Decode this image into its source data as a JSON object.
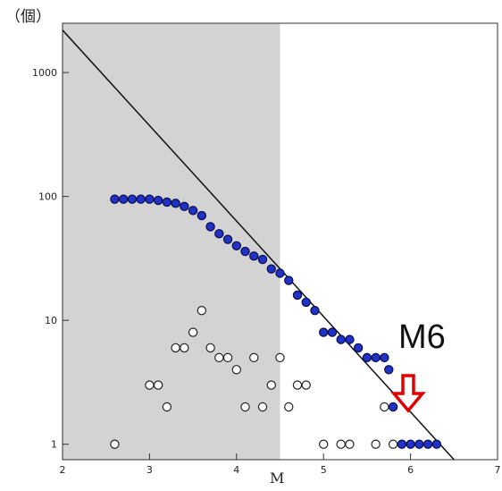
{
  "chart_data": {
    "type": "scatter",
    "ylabel": "（個）",
    "xlabel": "M",
    "xlim": [
      2,
      7
    ],
    "ylim": [
      0.75,
      2500
    ],
    "y_scale": "log",
    "x_ticks": [
      "2",
      "3",
      "4",
      "5",
      "6",
      "7"
    ],
    "y_ticks": [
      {
        "value": 1,
        "label": "1"
      },
      {
        "value": 10,
        "label": "10"
      },
      {
        "value": 100,
        "label": "100"
      },
      {
        "value": 1000,
        "label": "1000"
      }
    ],
    "shaded_region": {
      "x_from": 2,
      "x_to": 4.5,
      "color": "#d3d3d3"
    },
    "reference_line": {
      "x": [
        2,
        6.5
      ],
      "y": [
        2200,
        0.75
      ]
    },
    "series": [
      {
        "style": "filled",
        "color": "#1f33c4",
        "points": [
          [
            2.6,
            95
          ],
          [
            2.7,
            95
          ],
          [
            2.8,
            95
          ],
          [
            2.9,
            95
          ],
          [
            3.0,
            95
          ],
          [
            3.1,
            93
          ],
          [
            3.2,
            90
          ],
          [
            3.3,
            88
          ],
          [
            3.4,
            83
          ],
          [
            3.5,
            77
          ],
          [
            3.6,
            70
          ],
          [
            3.7,
            57
          ],
          [
            3.8,
            50
          ],
          [
            3.9,
            45
          ],
          [
            4.0,
            40
          ],
          [
            4.1,
            36
          ],
          [
            4.2,
            33
          ],
          [
            4.3,
            31
          ],
          [
            4.4,
            26
          ],
          [
            4.5,
            24
          ],
          [
            4.6,
            21
          ],
          [
            4.7,
            16
          ],
          [
            4.8,
            14
          ],
          [
            4.9,
            12
          ],
          [
            5.0,
            8
          ],
          [
            5.1,
            8
          ],
          [
            5.2,
            7
          ],
          [
            5.3,
            7
          ],
          [
            5.4,
            6
          ],
          [
            5.5,
            5
          ],
          [
            5.6,
            5
          ],
          [
            5.7,
            5
          ],
          [
            5.75,
            4
          ],
          [
            5.8,
            2
          ],
          [
            5.9,
            1
          ],
          [
            6.0,
            1
          ],
          [
            6.1,
            1
          ],
          [
            6.2,
            1
          ],
          [
            6.3,
            1
          ]
        ]
      },
      {
        "style": "open",
        "color": "#222222",
        "points": [
          [
            2.6,
            1
          ],
          [
            3.0,
            3
          ],
          [
            3.1,
            3
          ],
          [
            3.2,
            2
          ],
          [
            3.3,
            6
          ],
          [
            3.4,
            6
          ],
          [
            3.5,
            8
          ],
          [
            3.6,
            12
          ],
          [
            3.7,
            6
          ],
          [
            3.8,
            5
          ],
          [
            3.9,
            5
          ],
          [
            4.0,
            4
          ],
          [
            4.1,
            2
          ],
          [
            4.2,
            5
          ],
          [
            4.3,
            2
          ],
          [
            4.4,
            3
          ],
          [
            4.5,
            5
          ],
          [
            4.6,
            2
          ],
          [
            4.7,
            3
          ],
          [
            4.8,
            3
          ],
          [
            5.0,
            1
          ],
          [
            5.2,
            1
          ],
          [
            5.3,
            1
          ],
          [
            5.6,
            1
          ],
          [
            5.7,
            2
          ],
          [
            5.8,
            1
          ]
        ]
      }
    ],
    "annotation": {
      "text": "M6",
      "arrow_color": "#e00000"
    }
  }
}
